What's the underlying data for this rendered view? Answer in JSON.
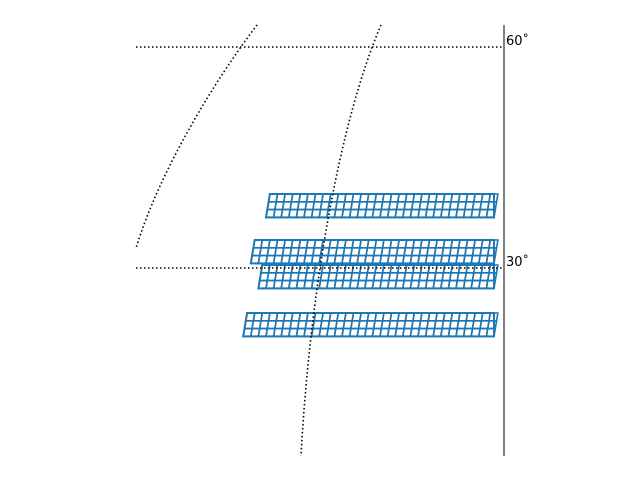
{
  "map": {
    "graticule_color": "#000000",
    "tile_color": "#1f77b4",
    "background": "#ffffff",
    "lat_labels": [
      {
        "value": 60,
        "text": "60˚"
      },
      {
        "value": 30,
        "text": "30˚"
      }
    ],
    "meridian_lines": 2,
    "tile_bands": [
      {
        "rows": 3,
        "cols": 30
      },
      {
        "rows": 3,
        "cols": 32
      },
      {
        "rows": 3,
        "cols": 31
      },
      {
        "rows": 3,
        "cols": 33
      }
    ]
  }
}
